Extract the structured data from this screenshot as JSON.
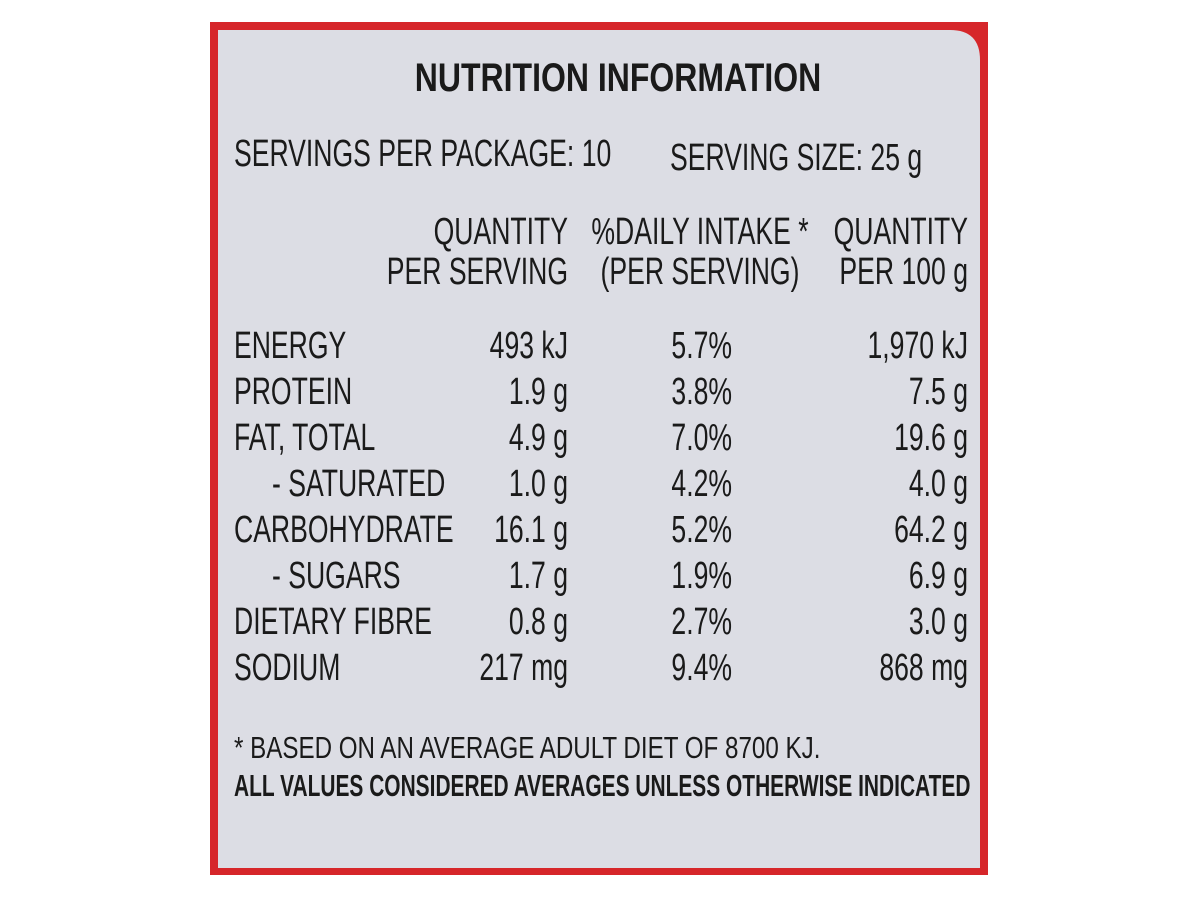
{
  "title": "NUTRITION INFORMATION",
  "servings_per_package": "SERVINGS PER PACKAGE: 10",
  "serving_size": "SERVING SIZE: 25 g",
  "table": {
    "headers": [
      [
        "QUANTITY",
        "PER SERVING"
      ],
      [
        "%DAILY INTAKE *",
        "(PER SERVING)"
      ],
      [
        "QUANTITY",
        "PER 100 g"
      ]
    ],
    "rows": [
      [
        "ENERGY",
        "493 kJ",
        "5.7%",
        "1,970 kJ"
      ],
      [
        "PROTEIN",
        "1.9 g",
        "3.8%",
        "7.5 g"
      ],
      [
        "FAT, TOTAL",
        "4.9 g",
        "7.0%",
        "19.6 g"
      ],
      [
        "- SATURATED",
        "1.0 g",
        "4.2%",
        "4.0 g"
      ],
      [
        "CARBOHYDRATE",
        "16.1 g",
        "5.2%",
        "64.2 g"
      ],
      [
        "- SUGARS",
        "1.7 g",
        "1.9%",
        "6.9 g"
      ],
      [
        "DIETARY FIBRE",
        "0.8 g",
        "2.7%",
        "3.0 g"
      ],
      [
        "SODIUM",
        "217 mg",
        "9.4%",
        "868 mg"
      ]
    ]
  },
  "footnote": "* BASED ON AN AVERAGE ADULT DIET OF 8700 KJ.",
  "note": "ALL VALUES CONSIDERED AVERAGES UNLESS OTHERWISE INDICATED"
}
